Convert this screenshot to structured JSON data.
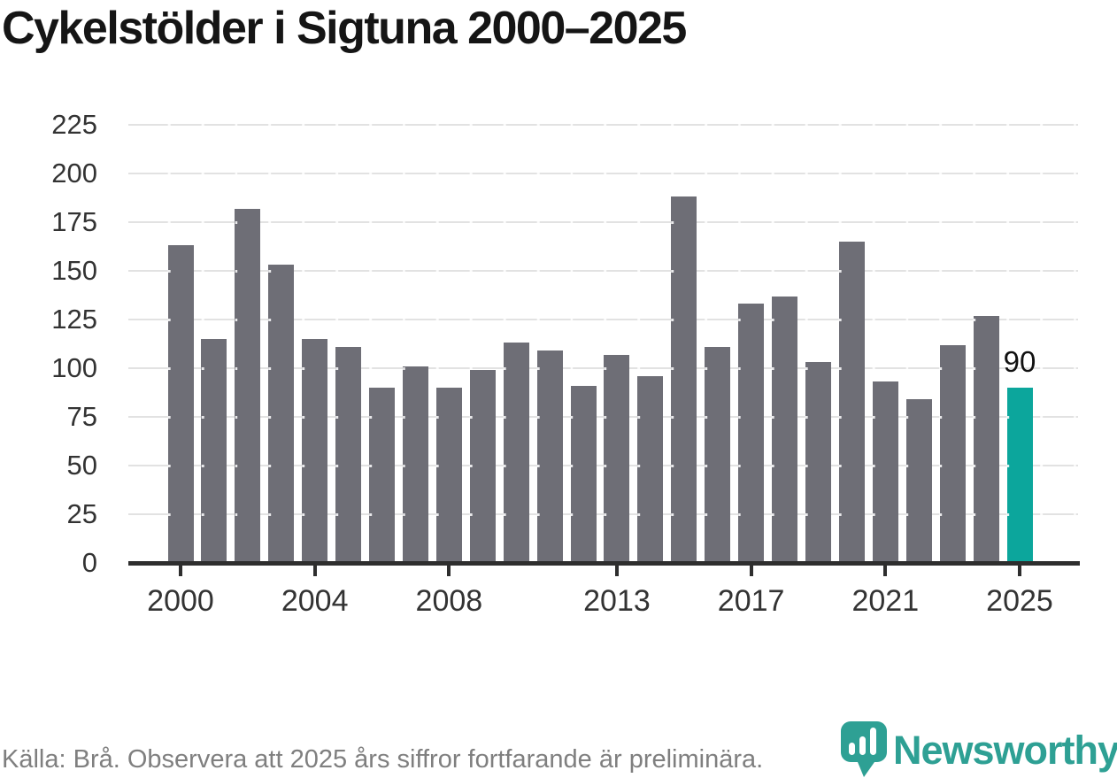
{
  "title": "Cykelstölder i Sigtuna 2000–2025",
  "annotation": {
    "label": "90"
  },
  "footer": {
    "source_note": "Källa: Brå. Observera att 2025 års siffror fortfarande är preliminära."
  },
  "branding": {
    "wordmark": "Newsworthy",
    "icon": "bar-chart-speech-bubble-icon"
  },
  "colors": {
    "bar": "#6e6e76",
    "highlight": "#0ca69c",
    "brand_teal": "#2ea094",
    "gridline": "#e2e2e2",
    "axis": "#2e2e2e",
    "title_text": "#151515",
    "tick_text": "#333333",
    "footer_text": "#7f7f7f",
    "annotation_text": "#111111"
  },
  "chart_data": {
    "type": "bar",
    "title": "Cykelstölder i Sigtuna 2000–2025",
    "categories": [
      2000,
      2001,
      2002,
      2003,
      2004,
      2005,
      2006,
      2007,
      2008,
      2009,
      2010,
      2011,
      2012,
      2013,
      2014,
      2015,
      2016,
      2017,
      2018,
      2019,
      2020,
      2021,
      2022,
      2023,
      2024,
      2025
    ],
    "values": [
      163,
      115,
      182,
      153,
      115,
      111,
      90,
      101,
      90,
      99,
      113,
      109,
      91,
      107,
      96,
      188,
      111,
      133,
      137,
      103,
      165,
      93,
      84,
      112,
      127,
      90
    ],
    "highlight_category": 2025,
    "highlight_value_label": "90",
    "x_tick_labels": [
      "2000",
      "2004",
      "2008",
      "2013",
      "2017",
      "2021",
      "2025"
    ],
    "y_ticks": [
      0,
      25,
      50,
      75,
      100,
      125,
      150,
      175,
      200,
      225
    ],
    "ylim": [
      0,
      235
    ],
    "xlabel": "",
    "ylabel": "",
    "grid": "horizontal",
    "legend_position": "none"
  }
}
